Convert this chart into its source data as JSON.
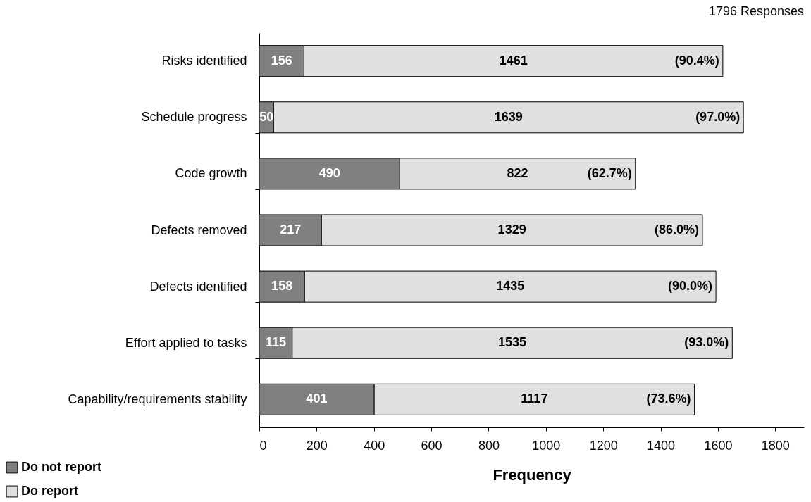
{
  "chart_data": {
    "type": "bar",
    "orientation": "horizontal",
    "stacked": true,
    "title": "1796 Responses",
    "xlabel": "Frequency",
    "categories": [
      "Risks identified",
      "Schedule progress",
      "Code growth",
      "Defects removed",
      "Defects identified",
      "Effort applied to tasks",
      "Capability/requirements stability"
    ],
    "series": [
      {
        "name": "Do not report",
        "color": "#808080",
        "values": [
          156,
          50,
          490,
          217,
          158,
          115,
          401
        ]
      },
      {
        "name": "Do report",
        "color": "#e0e0e0",
        "values": [
          1461,
          1639,
          822,
          1329,
          1435,
          1535,
          1117
        ]
      }
    ],
    "xlim": [
      0,
      1900
    ],
    "xticks": [
      0,
      200,
      400,
      600,
      800,
      1000,
      1200,
      1400,
      1600,
      1800
    ],
    "data_labels": true,
    "legend": "bottom left",
    "annotations": [
      {
        "text": "(90.4%)",
        "x": 1617,
        "y": "Risks identified"
      },
      {
        "text": "(97.0%)",
        "x": 1689,
        "y": "Schedule progress"
      },
      {
        "text": "(62.7%)",
        "x": 1312,
        "y": "Code growth"
      },
      {
        "text": "(86.0%)",
        "x": 1546,
        "y": "Defects removed"
      },
      {
        "text": "(90.0%)",
        "x": 1593,
        "y": "Defects identified"
      },
      {
        "text": "(93.0%)",
        "x": 1650,
        "y": "Effort applied to tasks"
      },
      {
        "text": "(73.6%)",
        "x": 1518,
        "y": "Capability/requirements stability"
      }
    ]
  }
}
